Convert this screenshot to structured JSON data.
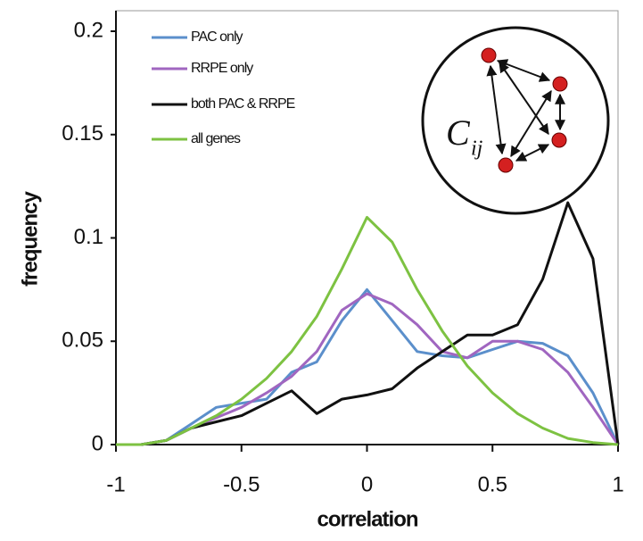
{
  "chart_data": {
    "type": "line",
    "xlabel": "correlation",
    "ylabel": "frequency",
    "x": [
      -1,
      -0.9,
      -0.8,
      -0.7,
      -0.6,
      -0.5,
      -0.4,
      -0.3,
      -0.2,
      -0.1,
      0,
      0.1,
      0.2,
      0.3,
      0.4,
      0.5,
      0.6,
      0.7,
      0.8,
      0.9,
      1
    ],
    "series": [
      {
        "name": "PAC only",
        "color": "#5b8fcb",
        "values": [
          0,
          0,
          0.002,
          0.01,
          0.018,
          0.02,
          0.022,
          0.035,
          0.04,
          0.06,
          0.075,
          0.06,
          0.045,
          0.043,
          0.042,
          0.046,
          0.05,
          0.049,
          0.043,
          0.025,
          0
        ]
      },
      {
        "name": "RRPE only",
        "color": "#a066c0",
        "values": [
          0,
          0,
          0.002,
          0.008,
          0.013,
          0.018,
          0.025,
          0.033,
          0.045,
          0.065,
          0.073,
          0.068,
          0.058,
          0.045,
          0.042,
          0.05,
          0.05,
          0.046,
          0.035,
          0.018,
          0
        ]
      },
      {
        "name": "both PAC & RRPE",
        "color": "#111111",
        "values": [
          0,
          0,
          0.002,
          0.008,
          0.011,
          0.014,
          0.02,
          0.026,
          0.015,
          0.022,
          0.024,
          0.027,
          0.037,
          0.045,
          0.053,
          0.053,
          0.058,
          0.08,
          0.117,
          0.09,
          0
        ]
      },
      {
        "name": "all genes",
        "color": "#7dc242",
        "values": [
          0,
          0,
          0.002,
          0.008,
          0.014,
          0.022,
          0.032,
          0.045,
          0.062,
          0.085,
          0.11,
          0.098,
          0.075,
          0.055,
          0.038,
          0.025,
          0.015,
          0.008,
          0.003,
          0.001,
          0
        ]
      }
    ],
    "xlim": [
      -1,
      1
    ],
    "xticks": [
      -1,
      -0.5,
      0,
      0.5,
      1
    ],
    "ylim": [
      0,
      0.2
    ],
    "yticks": [
      0,
      0.05,
      0.1,
      0.15,
      0.2
    ],
    "annotation": "C",
    "annotation_subscript": "ij"
  }
}
